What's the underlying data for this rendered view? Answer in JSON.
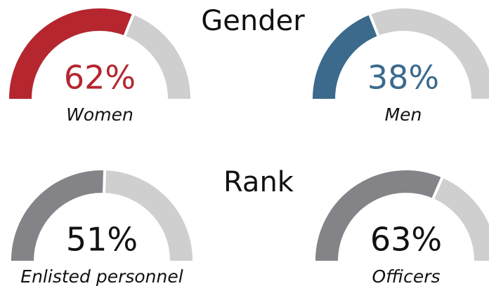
{
  "sections": [
    "Gender",
    "Rank"
  ],
  "chart_data": [
    {
      "type": "gauge",
      "label": "Women",
      "value": 62,
      "value_label": "62%",
      "color": "#b5262f",
      "track_color": "#cfcfcf",
      "text_color": "#b5262f",
      "ylim": [
        0,
        100
      ]
    },
    {
      "type": "gauge",
      "label": "Men",
      "value": 38,
      "value_label": "38%",
      "color": "#3c6a8c",
      "track_color": "#cfcfcf",
      "text_color": "#3c6a8c",
      "ylim": [
        0,
        100
      ]
    },
    {
      "type": "gauge",
      "label": "Enlisted personnel",
      "value": 51,
      "value_label": "51%",
      "color": "#848488",
      "track_color": "#cfcfcf",
      "text_color": "#111111",
      "ylim": [
        0,
        100
      ]
    },
    {
      "type": "gauge",
      "label": "Officers",
      "value": 63,
      "value_label": "63%",
      "color": "#848488",
      "track_color": "#cfcfcf",
      "text_color": "#111111",
      "ylim": [
        0,
        100
      ]
    }
  ]
}
